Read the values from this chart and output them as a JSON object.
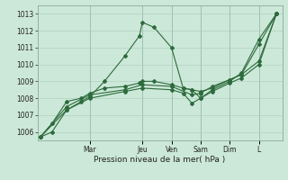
{
  "bg_color": "#cce8d8",
  "grid_color": "#aaccbb",
  "line_color": "#2d6b3c",
  "xlabel": "Pression niveau de la mer( hPa )",
  "ylim": [
    1005.5,
    1013.5
  ],
  "yticks": [
    1006,
    1007,
    1008,
    1009,
    1010,
    1011,
    1012,
    1013
  ],
  "xlim": [
    0,
    8.4
  ],
  "day_labels": [
    "Mar",
    "Jeu",
    "Ven",
    "Sam",
    "Dim",
    "L"
  ],
  "day_positions": [
    1.8,
    3.6,
    4.6,
    5.6,
    6.6,
    7.6
  ],
  "series1": {
    "x": [
      0.1,
      0.5,
      1.0,
      1.5,
      1.8,
      2.3,
      3.0,
      3.5,
      3.6,
      4.0,
      4.6,
      5.0,
      5.3,
      5.6,
      6.0,
      6.6,
      7.0,
      7.6,
      8.2
    ],
    "y": [
      1005.7,
      1006.0,
      1007.3,
      1007.8,
      1008.1,
      1009.0,
      1010.5,
      1011.7,
      1012.5,
      1012.2,
      1011.0,
      1008.6,
      1008.5,
      1008.0,
      1008.5,
      1009.0,
      1009.5,
      1011.5,
      1013.0
    ]
  },
  "series2": {
    "x": [
      0.1,
      0.5,
      1.0,
      1.5,
      1.8,
      2.3,
      3.0,
      3.5,
      3.6,
      4.0,
      4.6,
      5.0,
      5.3,
      5.6,
      6.0,
      6.6,
      7.0,
      7.6,
      8.2
    ],
    "y": [
      1005.7,
      1006.5,
      1007.8,
      1008.0,
      1008.3,
      1008.6,
      1008.7,
      1008.9,
      1009.0,
      1009.0,
      1008.8,
      1008.6,
      1008.5,
      1008.4,
      1008.6,
      1009.1,
      1009.4,
      1010.2,
      1013.0
    ]
  },
  "series3": {
    "x": [
      0.1,
      1.0,
      1.8,
      3.0,
      3.6,
      4.6,
      5.0,
      5.3,
      5.6,
      6.0,
      6.6,
      7.0,
      7.6,
      8.2
    ],
    "y": [
      1005.7,
      1007.3,
      1008.0,
      1008.4,
      1008.6,
      1008.5,
      1008.3,
      1007.7,
      1008.0,
      1008.4,
      1008.9,
      1009.2,
      1010.0,
      1013.0
    ]
  },
  "series4": {
    "x": [
      0.1,
      1.0,
      1.8,
      3.0,
      3.6,
      4.6,
      5.3,
      5.6,
      6.0,
      6.6,
      7.0,
      7.6,
      8.2
    ],
    "y": [
      1005.7,
      1007.5,
      1008.2,
      1008.5,
      1008.8,
      1008.7,
      1008.2,
      1008.3,
      1008.7,
      1009.1,
      1009.4,
      1011.2,
      1013.0
    ]
  }
}
